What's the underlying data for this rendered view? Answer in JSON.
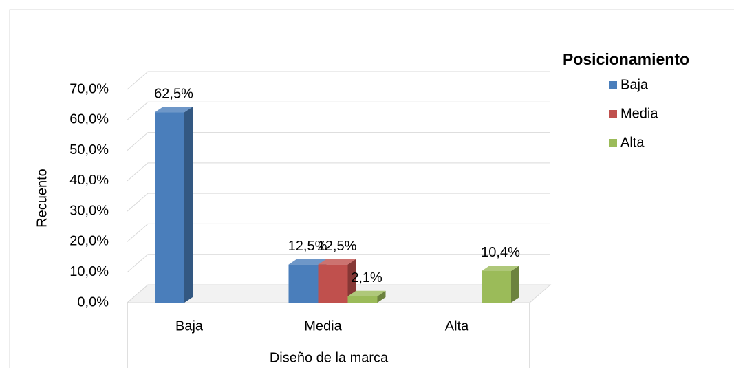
{
  "chart_data": {
    "type": "bar3d",
    "categories": [
      "Baja",
      "Media",
      "Alta"
    ],
    "x_label": "Diseño de la marca",
    "y_label": "Recuento",
    "legend_title": "Posicionamiento",
    "legend": "right",
    "grid": true,
    "ylim": [
      0,
      70
    ],
    "yticks": [
      {
        "value": 0,
        "label": "0,0%"
      },
      {
        "value": 10,
        "label": "10,0%"
      },
      {
        "value": 20,
        "label": "20,0%"
      },
      {
        "value": 30,
        "label": "30,0%"
      },
      {
        "value": 40,
        "label": "40,0%"
      },
      {
        "value": 50,
        "label": "50,0%"
      },
      {
        "value": 60,
        "label": "60,0%"
      },
      {
        "value": 70,
        "label": "70,0%"
      }
    ],
    "series": [
      {
        "name": "Baja",
        "color": "#4a7ebb",
        "values": [
          62.5,
          12.5,
          null
        ],
        "value_labels": [
          "62,5%",
          "12,5%",
          null
        ]
      },
      {
        "name": "Media",
        "color": "#c0504d",
        "values": [
          null,
          12.5,
          null
        ],
        "value_labels": [
          null,
          "12,5%",
          null
        ]
      },
      {
        "name": "Alta",
        "color": "#9bbb59",
        "values": [
          null,
          2.1,
          10.4
        ],
        "value_labels": [
          null,
          "2,1%",
          "10,4%"
        ]
      }
    ]
  }
}
